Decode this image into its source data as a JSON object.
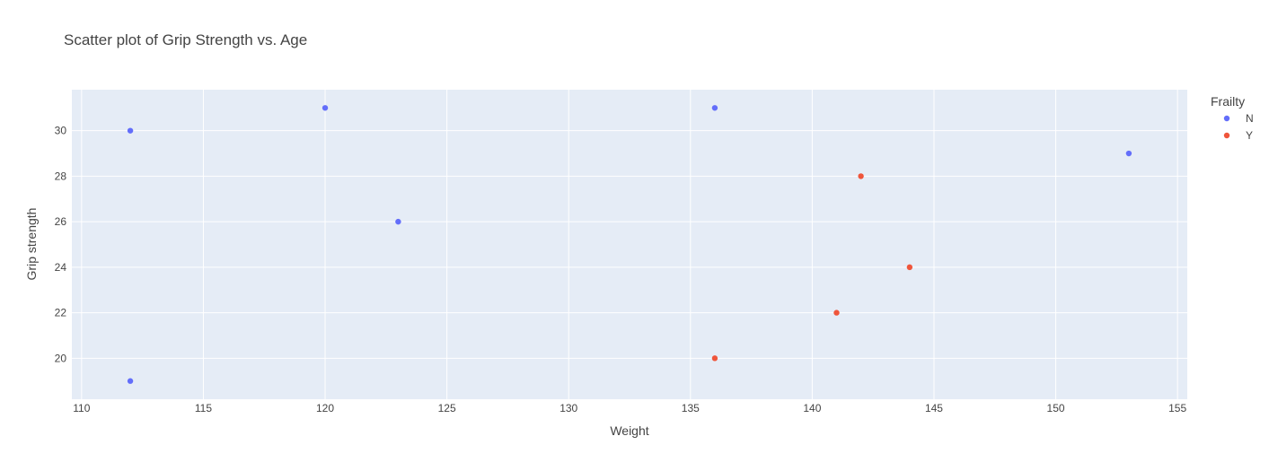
{
  "chart_data": {
    "type": "scatter",
    "title": "Scatter plot of Grip Strength vs. Age",
    "xlabel": "Weight",
    "ylabel": "Grip strength",
    "xlim": [
      109.6,
      155.4
    ],
    "ylim": [
      18.2,
      31.8
    ],
    "xticks": [
      110,
      115,
      120,
      125,
      130,
      135,
      140,
      145,
      150,
      155
    ],
    "yticks": [
      20,
      22,
      24,
      26,
      28,
      30
    ],
    "grid": true,
    "legend": {
      "title": "Frailty",
      "placement": "top-right"
    },
    "series": [
      {
        "name": "N",
        "color": "#636efa",
        "points": [
          {
            "x": 112,
            "y": 30
          },
          {
            "x": 112,
            "y": 19
          },
          {
            "x": 120,
            "y": 31
          },
          {
            "x": 123,
            "y": 26
          },
          {
            "x": 136,
            "y": 31
          },
          {
            "x": 153,
            "y": 29
          }
        ]
      },
      {
        "name": "Y",
        "color": "#ef553b",
        "points": [
          {
            "x": 136,
            "y": 20
          },
          {
            "x": 141,
            "y": 22
          },
          {
            "x": 142,
            "y": 28
          },
          {
            "x": 144,
            "y": 24
          }
        ]
      }
    ]
  }
}
